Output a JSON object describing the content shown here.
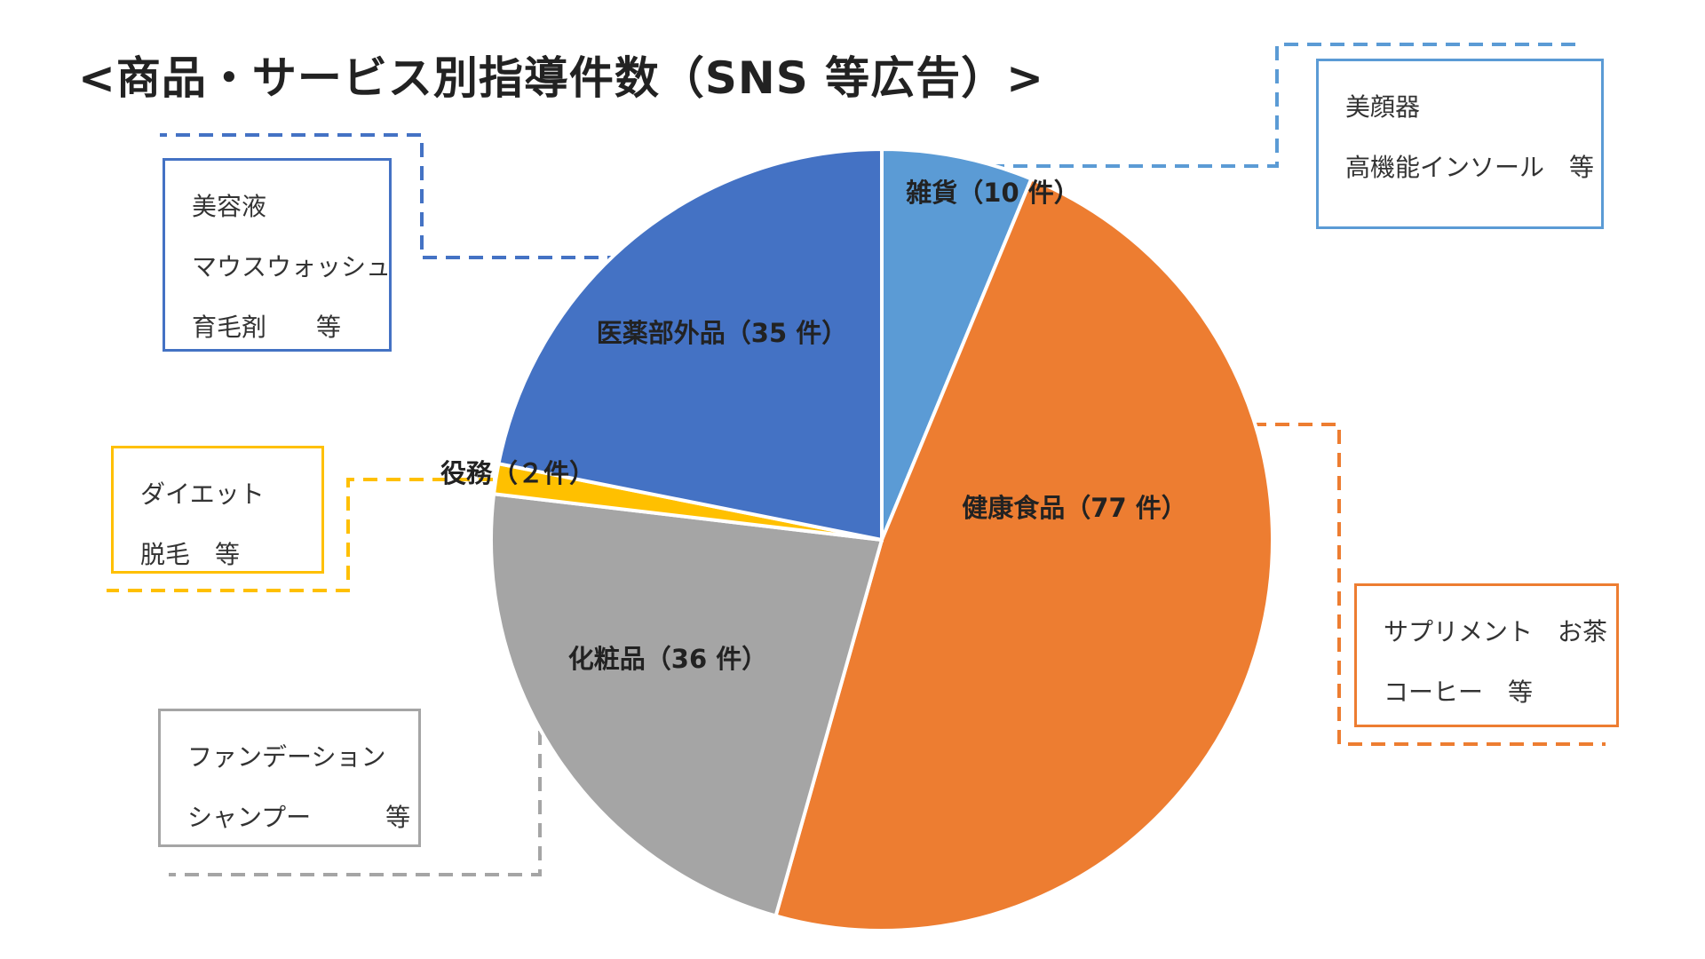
{
  "chart_data": {
    "type": "pie",
    "title": "<商品・サービス別指導件数（SNS 等広告）>",
    "unit": "件",
    "slices": [
      {
        "category": "雑貨",
        "label": "雑貨（10 件）",
        "value": 10,
        "color": "#5B9BD5",
        "examples": [
          "美顔器",
          "高機能インソール　等"
        ]
      },
      {
        "category": "健康食品",
        "label": "健康食品（77 件）",
        "value": 77,
        "color": "#ED7D31",
        "examples": [
          "サプリメント　お茶",
          "コーヒー　等"
        ]
      },
      {
        "category": "化粧品",
        "label": "化粧品（36 件）",
        "value": 36,
        "color": "#A5A5A5",
        "examples": [
          "ファンデーション",
          "シャンプー　　　等"
        ]
      },
      {
        "category": "役務",
        "label": "役務（２件）",
        "value": 2,
        "color": "#FFC000",
        "examples": [
          "ダイエット",
          "脱毛　等"
        ]
      },
      {
        "category": "医薬部外品",
        "label": "医薬部外品（35 件）",
        "value": 35,
        "color": "#4472C4",
        "examples": [
          "美容液",
          "マウスウォッシュ",
          "育毛剤　　等"
        ]
      }
    ]
  }
}
